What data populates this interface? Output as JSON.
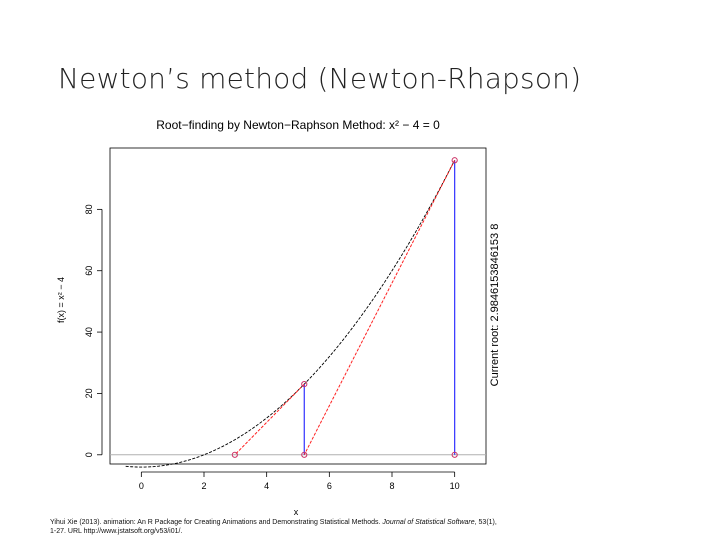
{
  "slide": {
    "title": "Newton’s method (Newton-Rhapson)"
  },
  "chart_data": {
    "type": "line",
    "title": "Root−finding by Newton−Raphson Method: x² − 4 = 0",
    "xlabel": "x",
    "ylabel": "f(x) = x² − 4",
    "right_label": "Current root: 2.9846153846153 8",
    "xlim": [
      -1,
      11
    ],
    "ylim": [
      -3,
      100
    ],
    "x_ticks": [
      0,
      2,
      4,
      6,
      8,
      10
    ],
    "x_tick_labels": [
      "0",
      "2",
      "4",
      "6",
      "8",
      "10"
    ],
    "y_ticks": [
      0,
      20,
      40,
      60,
      80
    ],
    "y_tick_labels": [
      "0",
      "20",
      "40",
      "60",
      "80"
    ],
    "curve": {
      "function": "x^2 - 4",
      "x_from": -0.5,
      "x_to": 10,
      "color": "#000000",
      "style": "dashed"
    },
    "tangent_segments": [
      {
        "x1": 10,
        "y1": 96,
        "x2": 5.2,
        "y2": 0
      },
      {
        "x1": 5.2,
        "y1": 23.04,
        "x2": 2.9846153846,
        "y2": 0
      }
    ],
    "vertical_segments": [
      {
        "x": 10,
        "y1": 0,
        "y2": 96
      },
      {
        "x": 5.2,
        "y1": 0,
        "y2": 23.04
      }
    ],
    "points": [
      {
        "x": 10,
        "y": 96
      },
      {
        "x": 10,
        "y": 0
      },
      {
        "x": 5.2,
        "y": 23.04
      },
      {
        "x": 5.2,
        "y": 0
      },
      {
        "x": 2.9846153846,
        "y": 0
      }
    ],
    "zero_line": 0,
    "colors": {
      "tangent": "#ff2020",
      "vertical": "#3030ff",
      "point": "#cc3366",
      "zero_line": "#b0b0b0"
    }
  },
  "citation": {
    "line1_pre": "Yihui Xie (2013). animation: An R Package for Creating Animations and Demonstrating Statistical Methods. ",
    "line1_journal": "Journal of Statistical Software",
    "line1_post": ", 53(1),",
    "line2": "1-27. URL http://www.jstatsoft.org/v53/i01/."
  }
}
